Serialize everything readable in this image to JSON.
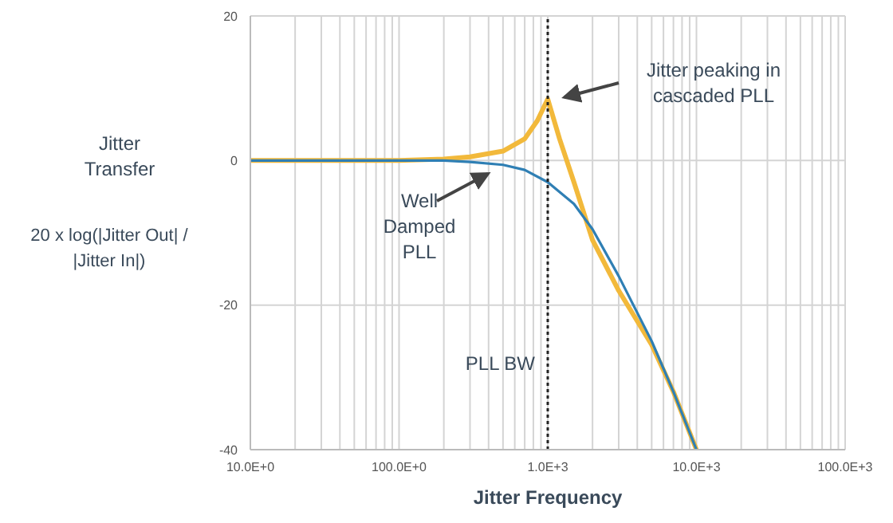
{
  "chart_data": {
    "type": "line",
    "ylabel": "Jitter Transfer",
    "xlabel": "Jitter Frequency",
    "log": "x",
    "grid": true,
    "xlim": [
      10,
      100000
    ],
    "xticks": [
      {
        "value": 10,
        "label": "10.0E+0"
      },
      {
        "value": 100,
        "label": "100.0E+0"
      },
      {
        "value": 1000,
        "label": "1.0E+3"
      },
      {
        "value": 10000,
        "label": "10.0E+3"
      },
      {
        "value": 100000,
        "label": "100.0E+3"
      }
    ],
    "ylim": [
      -40,
      20
    ],
    "yticks": [
      -40,
      -20,
      0,
      20
    ],
    "series": [
      {
        "color": "#f2b93b",
        "x": [
          10,
          100,
          200,
          300,
          500,
          700,
          850,
          1000,
          1200,
          1500,
          2000,
          3000,
          5000,
          7000,
          10000
        ],
        "values": [
          0,
          0,
          0.2,
          0.5,
          1.3,
          3,
          5.5,
          8.5,
          3,
          -3,
          -11,
          -18,
          -25.5,
          -32,
          -40
        ]
      },
      {
        "color": "#2f7fb4",
        "x": [
          10,
          100,
          200,
          300,
          500,
          700,
          1000,
          1500,
          2000,
          3000,
          5000,
          7000,
          10000
        ],
        "values": [
          0,
          0,
          0,
          -0.2,
          -0.6,
          -1.3,
          -3,
          -6,
          -9.5,
          -16,
          -25,
          -32,
          -40
        ]
      }
    ],
    "ref_lines": [
      {
        "axis": "x",
        "value": 1000,
        "label": "PLL BW",
        "line_style": "dotted",
        "color": "#222222"
      }
    ],
    "annotations": [
      "Jitter peaking in cascaded PLL",
      "Well Damped PLL",
      "20 x log(|Jitter Out| / |Jitter In|)"
    ]
  }
}
